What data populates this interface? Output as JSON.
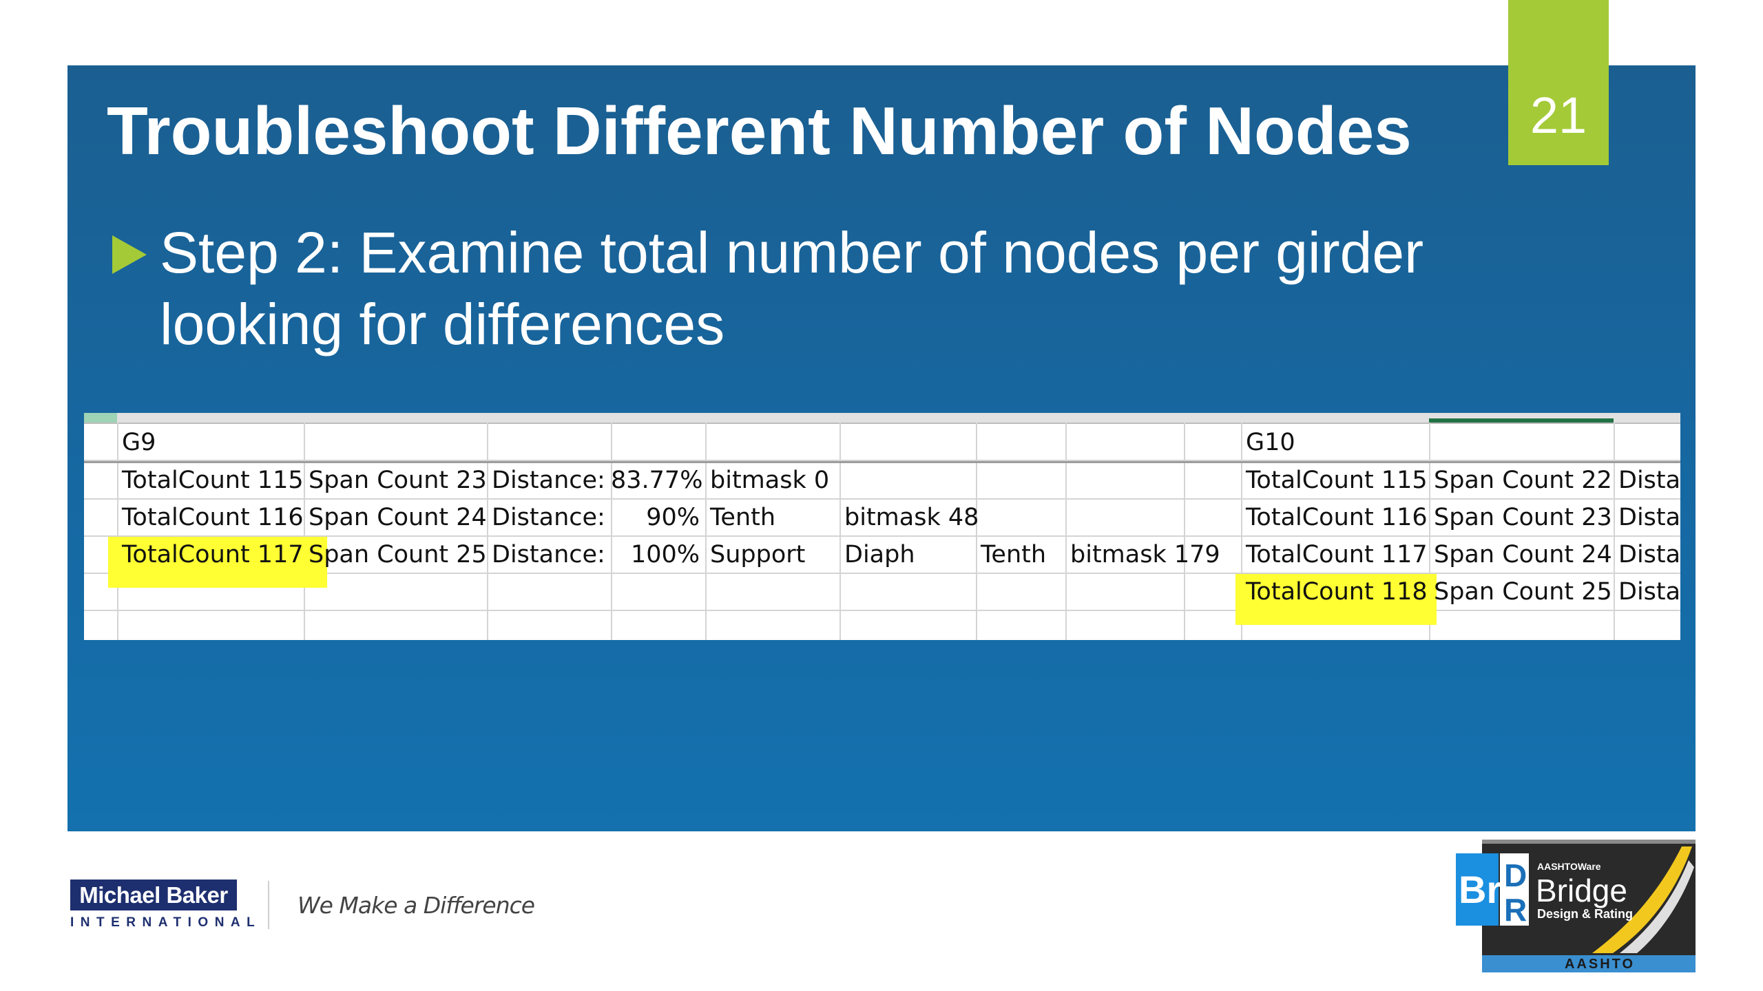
{
  "slide": {
    "number": "21",
    "title": "Troubleshoot Different Number of Nodes",
    "bullet_line1": "Step 2:  Examine total number of nodes per girder",
    "bullet_line2": "looking for differences"
  },
  "sheet": {
    "rows": [
      [
        "G9",
        "",
        "",
        "",
        "",
        "",
        "",
        "",
        "",
        "G10",
        "",
        ""
      ],
      [
        "TotalCount 115",
        "Span Count 23",
        "Distance:",
        "83.77%",
        "bitmask 0",
        "",
        "",
        "",
        "",
        "TotalCount 115",
        "Span Count 22",
        "Dista"
      ],
      [
        "TotalCount 116",
        "Span Count 24",
        "Distance:",
        "90%",
        "Tenth",
        "bitmask 48",
        "",
        "",
        "",
        "TotalCount 116",
        "Span Count 23",
        "Dista"
      ],
      [
        "TotalCount 117",
        "Span Count 25",
        "Distance:",
        "100%",
        "Support",
        "Diaph",
        "Tenth",
        "bitmask 179",
        "",
        "TotalCount 117",
        "Span Count 24",
        "Dista"
      ],
      [
        "",
        "",
        "",
        "",
        "",
        "",
        "",
        "",
        "",
        "TotalCount 118",
        "Span Count 25",
        "Dista"
      ]
    ]
  },
  "footer": {
    "logo_name": "Michael Baker",
    "logo_sub": "INTERNATIONAL",
    "tagline": "We Make a Difference",
    "brdr_b": "Br",
    "brdr_d": "D",
    "brdr_r": "R",
    "brdr_small": "AASHTOWare",
    "brdr_bridge": "Bridge",
    "brdr_design": "Design & Rating",
    "brdr_aashto": "AASHTO"
  },
  "colors": {
    "accent_green": "#a4ca37",
    "panel_blue": "#1668a2",
    "highlight_yellow": "#ffff33"
  }
}
